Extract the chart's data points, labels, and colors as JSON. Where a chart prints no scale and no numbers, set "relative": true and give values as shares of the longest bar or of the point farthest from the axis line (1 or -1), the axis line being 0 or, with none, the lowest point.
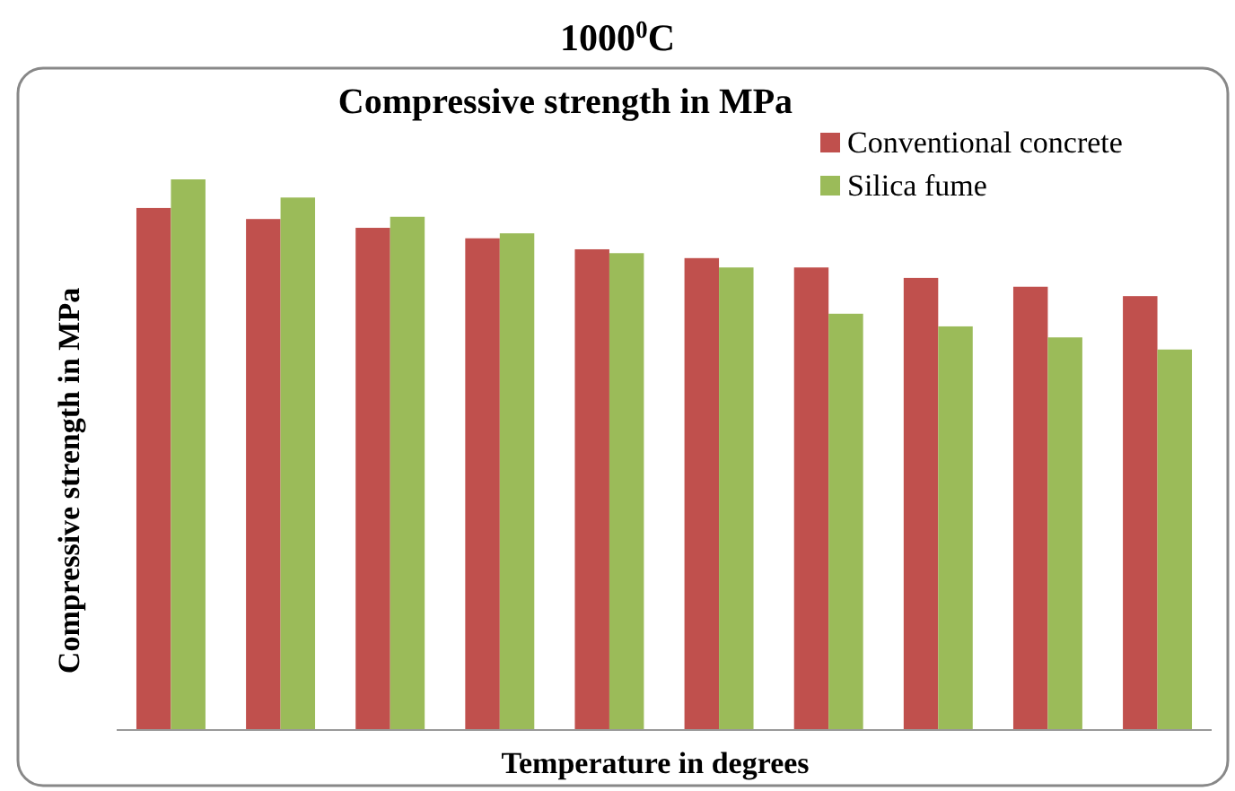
{
  "chart_data": {
    "type": "bar",
    "title": "1000$^{0}$C",
    "subtitle": "Compressive strength in MPa",
    "xlabel": "Temperature in degrees",
    "ylabel": "Compressive strength in MPa",
    "relative": true,
    "categories": [
      null,
      null,
      null,
      null,
      null,
      null,
      null,
      null,
      null,
      null
    ],
    "series": [
      {
        "name": "Conventional concrete",
        "color": "#c0504d",
        "values": [
          0.948,
          0.928,
          0.912,
          0.893,
          0.873,
          0.857,
          0.84,
          0.821,
          0.805,
          0.788
        ]
      },
      {
        "name": "Silica fume",
        "color": "#9bbb59",
        "values": [
          1,
          0.967,
          0.932,
          0.902,
          0.866,
          0.84,
          0.756,
          0.733,
          0.713,
          0.691
        ]
      }
    ],
    "legend": "top right"
  }
}
